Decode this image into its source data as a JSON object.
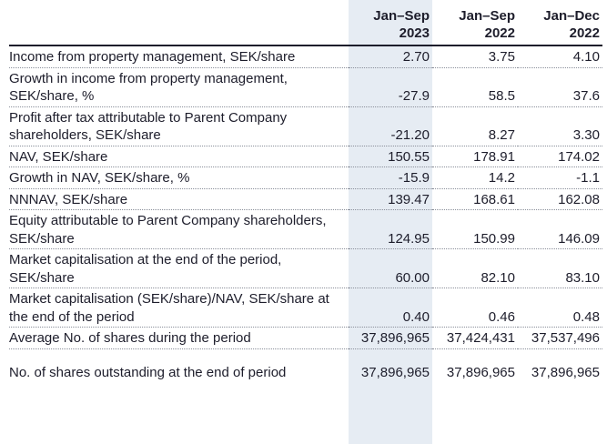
{
  "headers": [
    {
      "line1": "Jan–Sep",
      "line2": "2023"
    },
    {
      "line1": "Jan–Sep",
      "line2": "2022"
    },
    {
      "line1": "Jan–Dec",
      "line2": "2022"
    }
  ],
  "rows": [
    {
      "label": "Income from property management, SEK/share",
      "values": [
        "2.70",
        "3.75",
        "4.10"
      ]
    },
    {
      "label": "Growth in income from property management, SEK/share, %",
      "values": [
        "-27.9",
        "58.5",
        "37.6"
      ]
    },
    {
      "label": "Profit after tax attributable to Parent Company shareholders, SEK/share",
      "values": [
        "-21.20",
        "8.27",
        "3.30"
      ]
    },
    {
      "label": "NAV, SEK/share",
      "values": [
        "150.55",
        "178.91",
        "174.02"
      ]
    },
    {
      "label": "Growth in NAV, SEK/share, %",
      "values": [
        "-15.9",
        "14.2",
        "-1.1"
      ]
    },
    {
      "label": "NNNAV, SEK/share",
      "values": [
        "139.47",
        "168.61",
        "162.08"
      ]
    },
    {
      "label": "Equity attributable to Parent Company shareholders, SEK/share",
      "values": [
        "124.95",
        "150.99",
        "146.09"
      ]
    },
    {
      "label": "Market capitalisation at the end of the period, SEK/share",
      "values": [
        "60.00",
        "82.10",
        "83.10"
      ]
    },
    {
      "label": "Market capitalisation (SEK/share)/NAV, SEK/share at the end of the period",
      "values": [
        "0.40",
        "0.46",
        "0.48"
      ]
    },
    {
      "label": "Average No. of shares during the period",
      "values": [
        "37,896,965",
        "37,424,431",
        "37,537,496"
      ]
    },
    {
      "label": "No. of shares outstanding at the end of period",
      "values": [
        "37,896,965",
        "37,896,965",
        "37,896,965"
      ]
    }
  ]
}
